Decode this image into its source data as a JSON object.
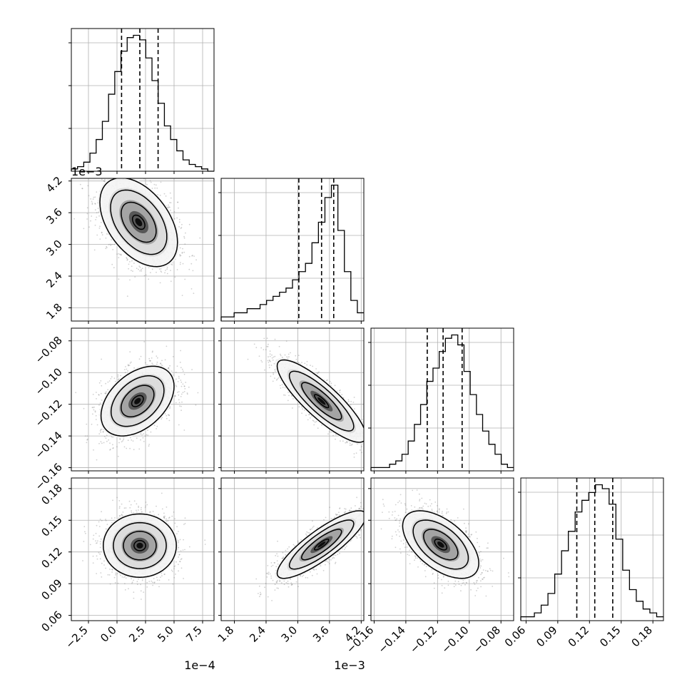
{
  "chart_data": {
    "type": "corner",
    "parameters": [
      {
        "id": "p0",
        "range": [
          -4.0,
          8.5
        ],
        "ticks": [
          -2.5,
          0.0,
          2.5,
          5.0,
          7.5
        ],
        "tick_labels": [
          "−2.5",
          "0.0",
          "2.5",
          "5.0",
          "7.5"
        ],
        "offset_label": "1e−4",
        "median": 2.0,
        "q16": 0.4,
        "q84": 3.6
      },
      {
        "id": "p1",
        "range": [
          1.55,
          4.25
        ],
        "ticks": [
          1.8,
          2.4,
          3.0,
          3.6,
          4.2
        ],
        "tick_labels": [
          "1.8",
          "2.4",
          "3.0",
          "3.6",
          "4.2"
        ],
        "offset_label": "1e−3",
        "median": 3.45,
        "q16": 3.02,
        "q84": 3.68
      },
      {
        "id": "p2",
        "range": [
          -0.162,
          -0.072
        ],
        "ticks": [
          -0.16,
          -0.14,
          -0.12,
          -0.1,
          -0.08
        ],
        "tick_labels": [
          "−0.16",
          "−0.14",
          "−0.12",
          "−0.10",
          "−0.08"
        ],
        "offset_label": "",
        "median": -0.1165,
        "q16": -0.1265,
        "q84": -0.1045
      },
      {
        "id": "p3",
        "range": [
          0.055,
          0.19
        ],
        "ticks": [
          0.06,
          0.09,
          0.12,
          0.15,
          0.18
        ],
        "tick_labels": [
          "0.06",
          "0.09",
          "0.12",
          "0.15",
          "0.18"
        ],
        "offset_label": "",
        "median": 0.125,
        "q16": 0.108,
        "q84": 0.142
      }
    ],
    "histograms": [
      [
        1,
        2,
        4,
        8,
        14,
        22,
        34,
        44,
        53,
        59,
        60,
        58,
        50,
        40,
        30,
        20,
        14,
        9,
        5,
        3,
        2,
        1,
        0
      ],
      [
        1,
        1,
        2,
        2,
        3,
        3,
        4,
        5,
        6,
        7,
        8,
        10,
        12,
        14,
        19,
        24,
        30,
        33,
        22,
        12,
        5,
        2
      ],
      [
        1,
        1,
        1,
        2,
        3,
        5,
        9,
        14,
        20,
        27,
        31,
        36,
        40,
        41,
        38,
        30,
        23,
        17,
        12,
        8,
        5,
        2,
        1
      ],
      [
        1,
        1,
        2,
        4,
        7,
        12,
        18,
        23,
        28,
        31,
        33,
        35,
        34,
        30,
        21,
        13,
        8,
        5,
        3,
        2,
        1
      ]
    ],
    "pairs": [
      {
        "x": "p0",
        "y": "p1",
        "mean": [
          1.9,
          3.42
        ],
        "sd": [
          1.7,
          0.42
        ],
        "corr": -0.45
      },
      {
        "x": "p0",
        "y": "p2",
        "mean": [
          1.8,
          -0.118
        ],
        "sd": [
          1.6,
          0.011
        ],
        "corr": 0.42
      },
      {
        "x": "p0",
        "y": "p3",
        "mean": [
          2.0,
          0.126
        ],
        "sd": [
          1.6,
          0.015
        ],
        "corr": 0.0
      },
      {
        "x": "p1",
        "y": "p2",
        "mean": [
          3.45,
          -0.118
        ],
        "sd": [
          0.42,
          0.013
        ],
        "corr": -0.85
      },
      {
        "x": "p1",
        "y": "p3",
        "mean": [
          3.45,
          0.127
        ],
        "sd": [
          0.42,
          0.016
        ],
        "corr": 0.85
      },
      {
        "x": "p2",
        "y": "p3",
        "mean": [
          -0.118,
          0.127
        ],
        "sd": [
          0.012,
          0.016
        ],
        "corr": -0.55
      }
    ],
    "grid": true,
    "colors": {
      "points": "#777777",
      "contour": "#000000",
      "grid": "#b0b0b0"
    }
  }
}
